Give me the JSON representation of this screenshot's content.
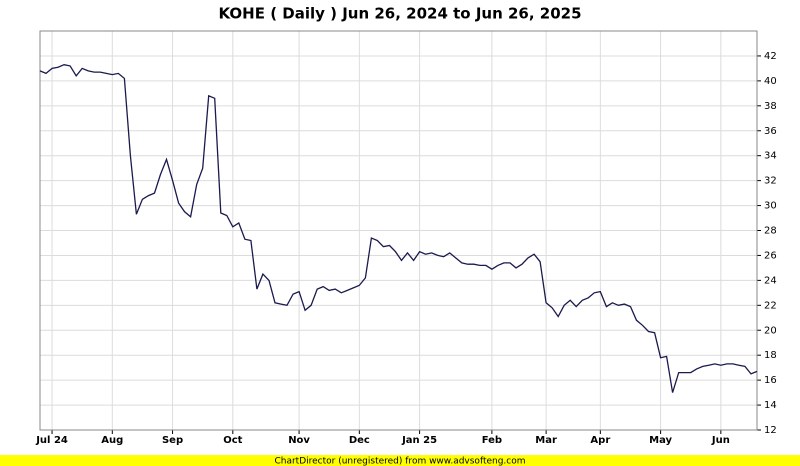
{
  "chart_data": {
    "type": "line",
    "title": "KOHE ( Daily ) Jun 26, 2024 to Jun 26, 2025",
    "footer": "ChartDirector (unregistered) from www.advsofteng.com",
    "categories": [
      null,
      null,
      "Jul 24",
      null,
      null,
      null,
      null,
      null,
      null,
      null,
      null,
      null,
      "Aug",
      null,
      null,
      null,
      null,
      null,
      null,
      null,
      null,
      null,
      "Sep",
      null,
      null,
      null,
      null,
      null,
      null,
      null,
      null,
      null,
      "Oct",
      null,
      null,
      null,
      null,
      null,
      null,
      null,
      null,
      null,
      null,
      "Nov",
      null,
      null,
      null,
      null,
      null,
      null,
      null,
      null,
      null,
      "Dec",
      null,
      null,
      null,
      null,
      null,
      null,
      null,
      null,
      null,
      "Jan 25",
      null,
      null,
      null,
      null,
      null,
      null,
      null,
      null,
      null,
      null,
      null,
      "Feb",
      null,
      null,
      null,
      null,
      null,
      null,
      null,
      null,
      "Mar",
      null,
      null,
      null,
      null,
      null,
      null,
      null,
      null,
      "Apr",
      null,
      null,
      null,
      null,
      null,
      null,
      null,
      null,
      null,
      "May",
      null,
      null,
      null,
      null,
      null,
      null,
      null,
      null,
      null,
      "Jun",
      null,
      null,
      null,
      null,
      null,
      null
    ],
    "series": [
      {
        "color": "#1a1a4e",
        "values": [
          40.8,
          40.6,
          41.0,
          41.1,
          41.3,
          41.2,
          40.4,
          41.0,
          40.8,
          40.7,
          40.7,
          40.6,
          40.5,
          40.6,
          40.2,
          34,
          29.3,
          30.5,
          30.8,
          31.0,
          32.5,
          33.7,
          32.0,
          30.2,
          29.5,
          29.1,
          31.7,
          33,
          38.8,
          38.6,
          29.4,
          29.2,
          28.3,
          28.6,
          27.3,
          27.2,
          23.3,
          24.5,
          24.0,
          22.2,
          22.1,
          22.0,
          22.9,
          23.1,
          21.6,
          22.0,
          23.3,
          23.5,
          23.2,
          23.3,
          23.0,
          23.2,
          23.4,
          23.6,
          24.2,
          27.4,
          27.2,
          26.7,
          26.8,
          26.3,
          25.6,
          26.2,
          25.6,
          26.3,
          26.1,
          26.2,
          26.0,
          25.9,
          26.2,
          25.8,
          25.4,
          25.3,
          25.3,
          25.2,
          25.2,
          24.9,
          25.2,
          25.4,
          25.4,
          25.0,
          25.3,
          25.8,
          26.1,
          25.5,
          22.2,
          21.8,
          21.1,
          22.0,
          22.4,
          21.9,
          22.4,
          22.6,
          23.0,
          23.1,
          21.9,
          22.2,
          22.0,
          22.1,
          21.9,
          20.8,
          20.4,
          19.9,
          19.8,
          17.8,
          17.9,
          15.0,
          16.6,
          16.6,
          16.6,
          16.9,
          17.1,
          17.2,
          17.3,
          17.2,
          17.3,
          17.3,
          17.2,
          17.1,
          16.5,
          16.7
        ]
      }
    ],
    "ylim": [
      12,
      44
    ],
    "yticks": [
      12,
      14,
      16,
      18,
      20,
      22,
      24,
      26,
      28,
      30,
      32,
      34,
      36,
      38,
      40,
      42
    ],
    "grid": true
  }
}
